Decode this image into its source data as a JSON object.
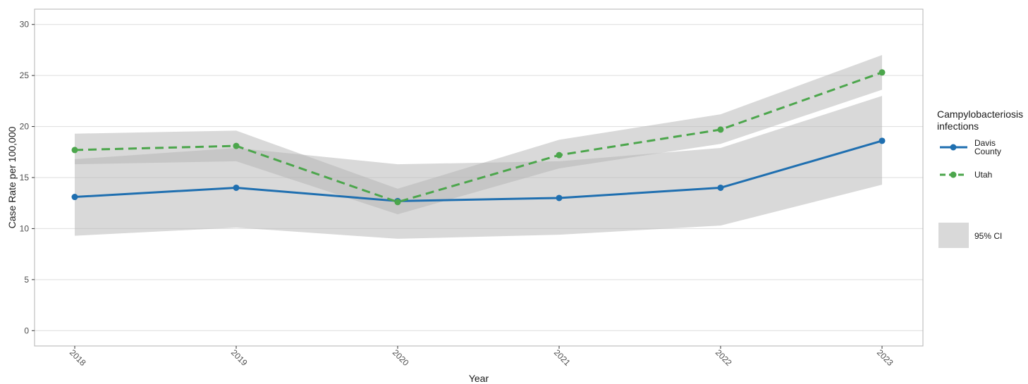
{
  "chart_data": {
    "type": "line",
    "x": [
      "2018",
      "2019",
      "2020",
      "2021",
      "2022",
      "2023"
    ],
    "xlabel": "Year",
    "ylabel": "Case Rate per 100,000",
    "ylim": [
      -1.5,
      31.5
    ],
    "yticks": [
      0,
      5,
      10,
      15,
      20,
      25,
      30
    ],
    "grid": "horizontal",
    "legend_position": "right",
    "series": [
      {
        "name_lines": [
          "Davis",
          "County"
        ],
        "values": [
          13.1,
          14.0,
          12.7,
          13.0,
          14.0,
          18.6
        ],
        "ci_lower": [
          9.3,
          10.1,
          9.0,
          9.4,
          10.3,
          14.3
        ],
        "ci_upper": [
          16.8,
          17.9,
          16.3,
          16.6,
          17.9,
          23.0
        ],
        "color": "#1f6fb0",
        "dash": "solid"
      },
      {
        "name_lines": [
          "Utah"
        ],
        "values": [
          17.7,
          18.1,
          12.6,
          17.2,
          19.7,
          25.3
        ],
        "ci_lower": [
          16.3,
          16.6,
          11.4,
          15.9,
          18.3,
          23.6
        ],
        "ci_upper": [
          19.3,
          19.6,
          13.9,
          18.7,
          21.2,
          27.0
        ],
        "color": "#4ca64c",
        "dash": "dashed"
      }
    ],
    "legend": {
      "title_lines": [
        "Campylobacteriosis",
        "infections"
      ],
      "ci_label": "95% CI",
      "ci_color": "#b3b3b3"
    }
  }
}
